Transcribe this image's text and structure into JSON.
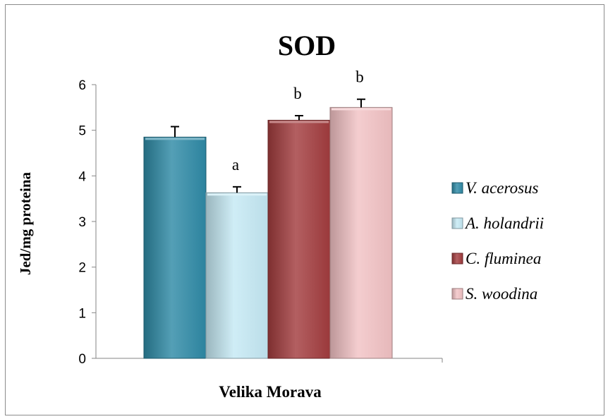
{
  "chart_data": {
    "type": "bar",
    "title": "SOD",
    "xlabel": "Velika Morava",
    "ylabel": "Jed/mg proteina",
    "ylim": [
      0,
      6
    ],
    "yticks": [
      "0",
      "1",
      "2",
      "3",
      "4",
      "5",
      "6"
    ],
    "grid": false,
    "legend_position": "right",
    "categories": [
      "Velika Morava"
    ],
    "series": [
      {
        "name": "V. acerosus",
        "value": 4.85,
        "error": 0.23,
        "significance": "",
        "color": "#2e8aa6"
      },
      {
        "name": "A. holandrii",
        "value": 3.63,
        "error": 0.13,
        "significance": "a",
        "color": "#c5e9f4"
      },
      {
        "name": "C. fluminea",
        "value": 5.22,
        "error": 0.1,
        "significance": "b",
        "color": "#a23c3e"
      },
      {
        "name": "S. woodina",
        "value": 5.5,
        "error": 0.18,
        "significance": "b",
        "color": "#f2c2c4"
      }
    ]
  }
}
